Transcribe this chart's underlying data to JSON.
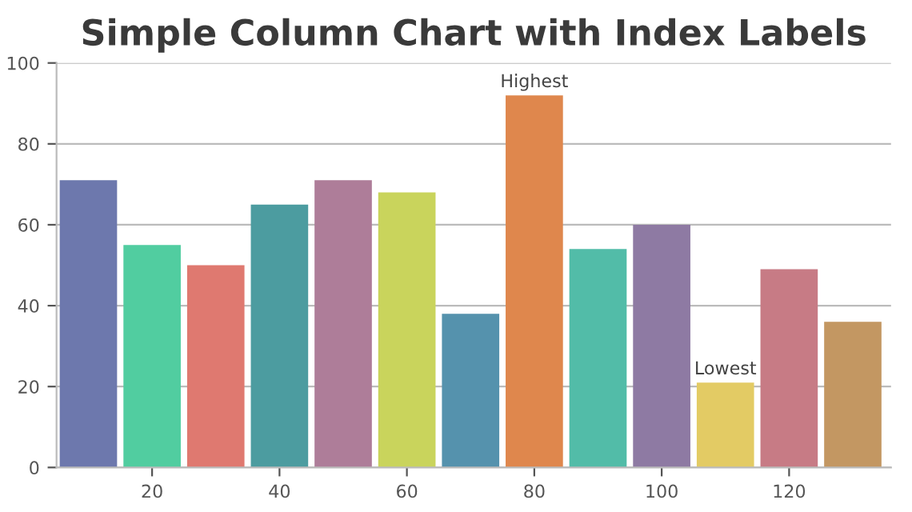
{
  "chart_data": {
    "type": "bar",
    "title": "Simple Column Chart with Index Labels",
    "x": [
      10,
      20,
      30,
      40,
      50,
      60,
      70,
      80,
      90,
      100,
      110,
      120,
      130
    ],
    "values": [
      71,
      55,
      50,
      65,
      71,
      68,
      38,
      92,
      54,
      60,
      21,
      49,
      36
    ],
    "colors": [
      "#6d78ad",
      "#51cda0",
      "#df7970",
      "#4c9ca0",
      "#ae7d99",
      "#c9d45c",
      "#5592ad",
      "#df874d",
      "#52bca8",
      "#8e7aa3",
      "#e3cb64",
      "#c77b85",
      "#c39762"
    ],
    "xlim": [
      5,
      136
    ],
    "xticks": [
      20,
      40,
      60,
      80,
      100,
      120
    ],
    "ylim": [
      0,
      100
    ],
    "yticks": [
      0,
      20,
      40,
      60,
      80,
      100
    ],
    "grid": "y",
    "annotations": [
      {
        "text": "Highest",
        "x": 80,
        "y": 92
      },
      {
        "text": "Lowest",
        "x": 110,
        "y": 21
      }
    ]
  }
}
